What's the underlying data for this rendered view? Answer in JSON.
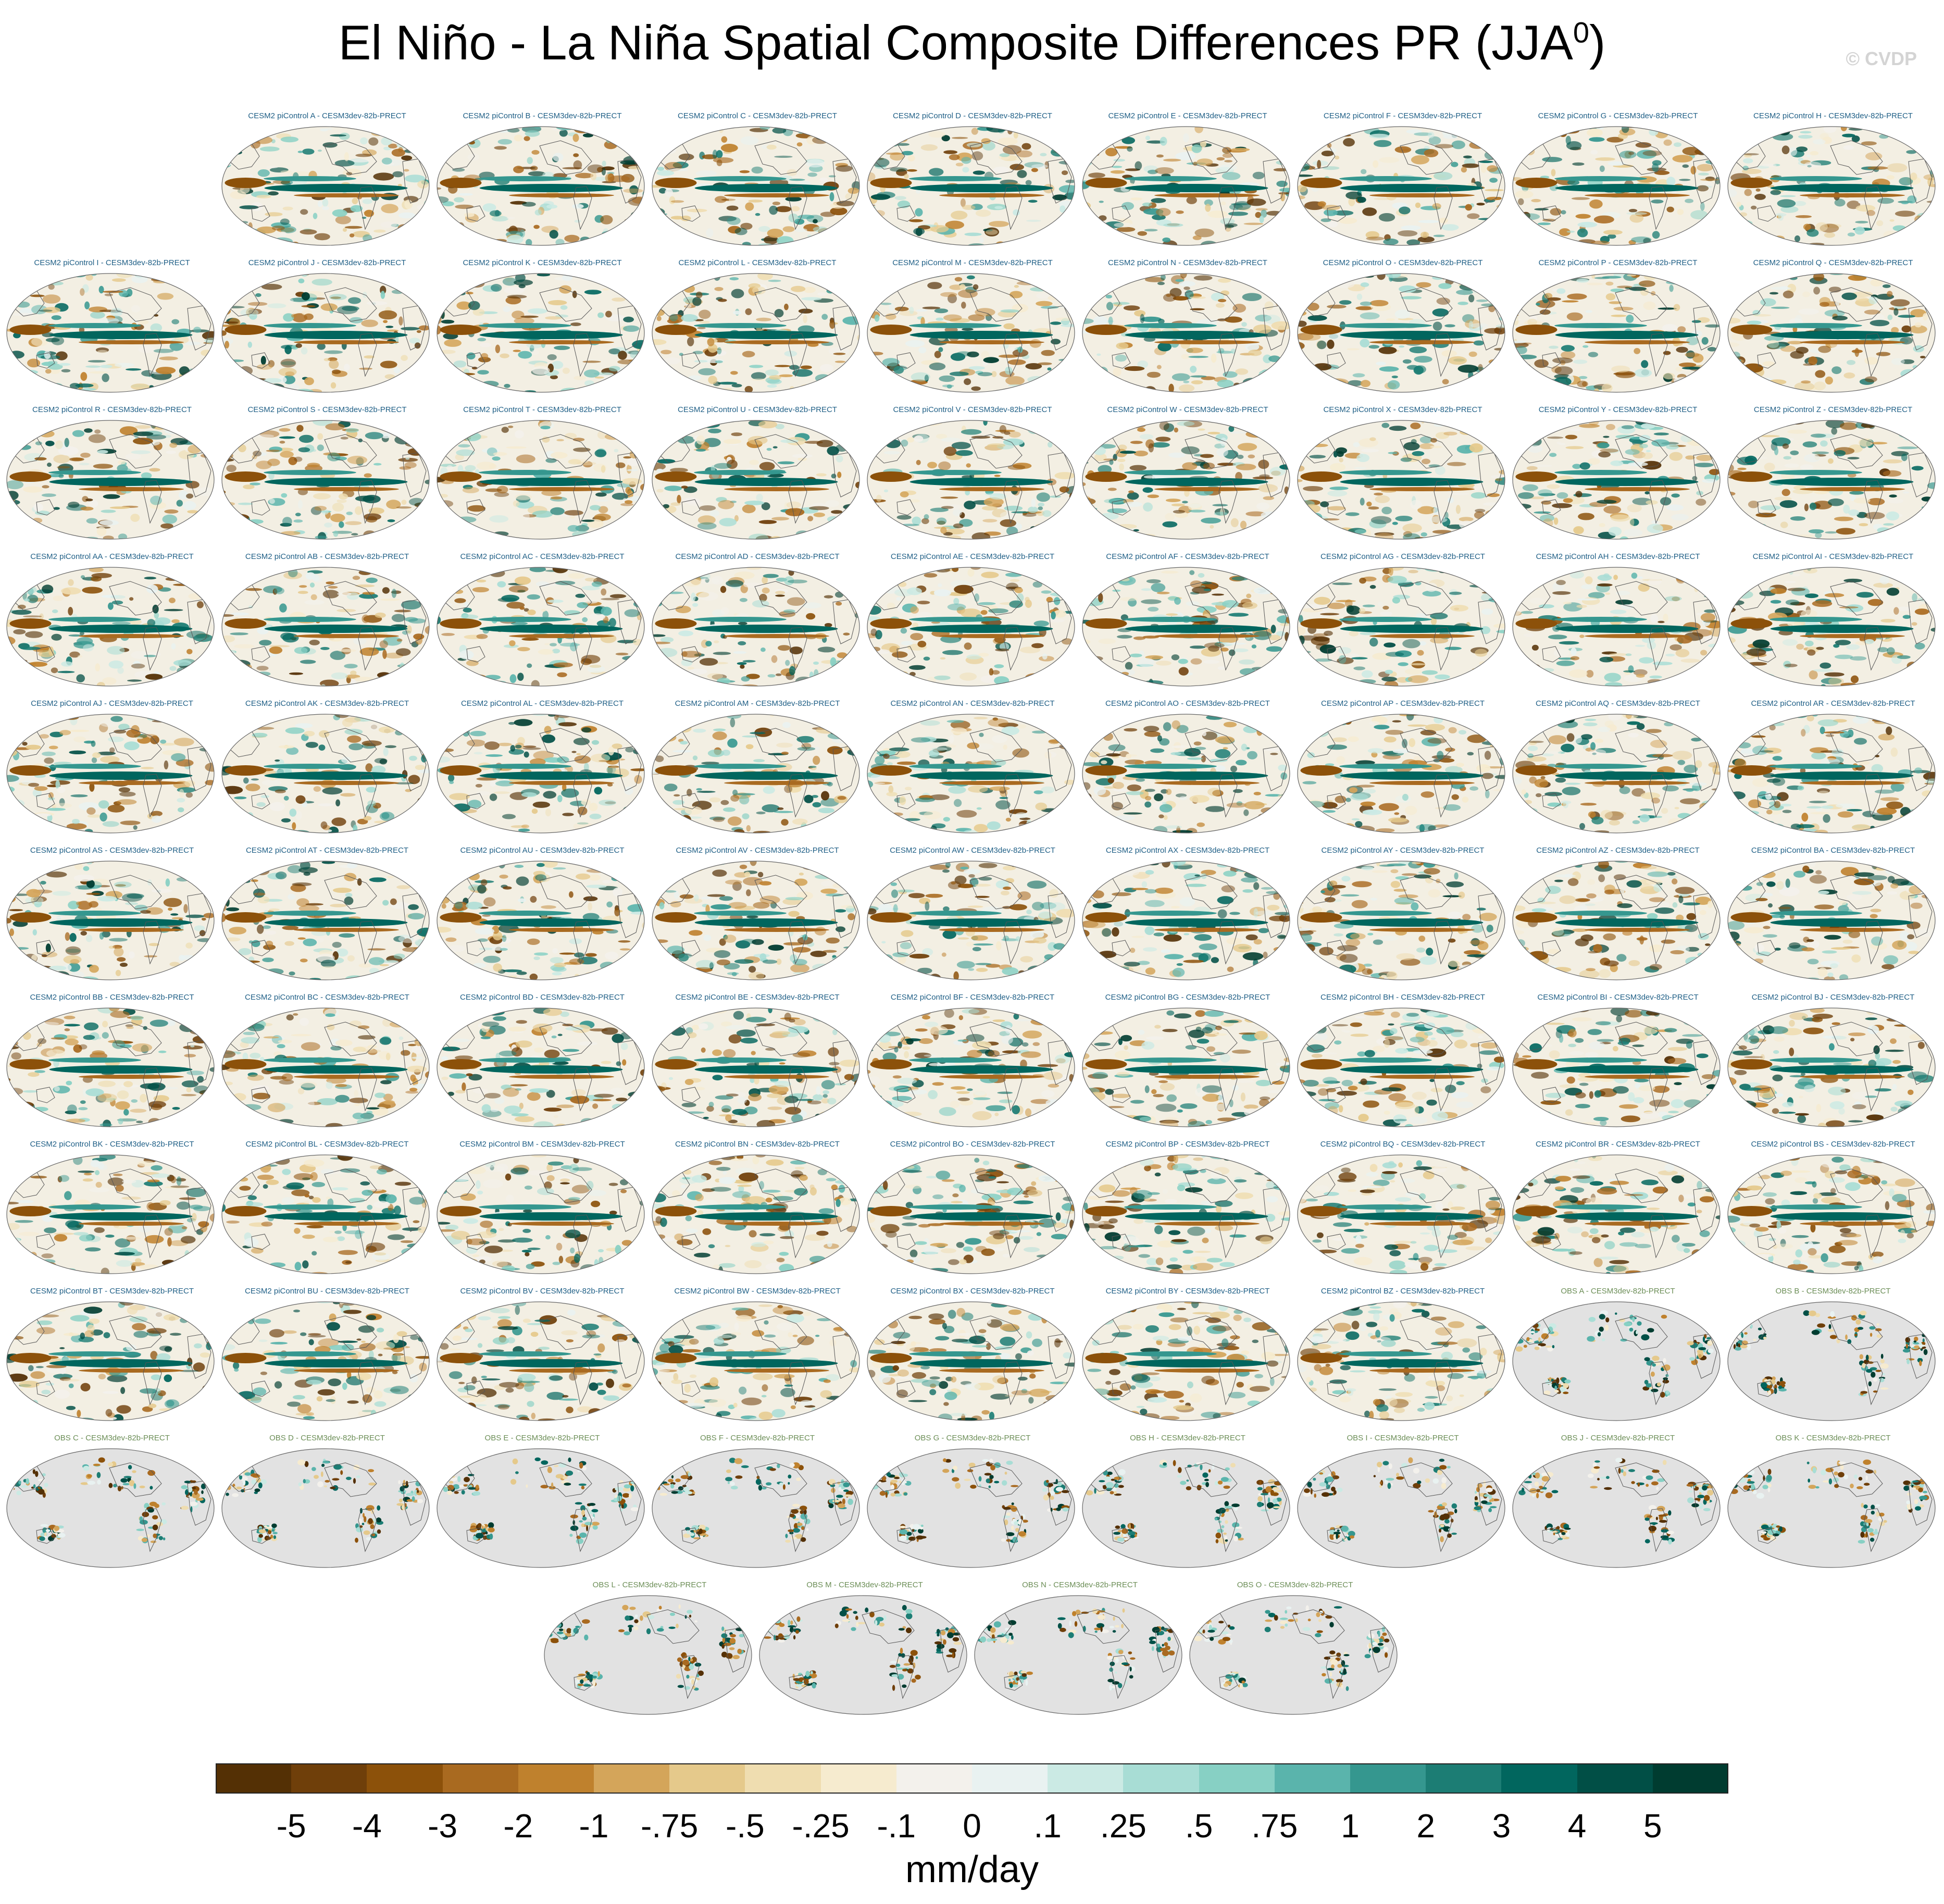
{
  "chart_data": {
    "type": "heatmap",
    "title": "El Niño - La Niña Spatial Composite Differences PR (JJA",
    "title_superscript": "0",
    "title_close": ")",
    "copyright": "© CVDP",
    "units": "mm/day",
    "projection": "global map (Pacific-centered)",
    "colorbar": {
      "labels": [
        "-5",
        "-4",
        "-3",
        "-2",
        "-1",
        "-.75",
        "-.5",
        "-.25",
        "-.1",
        "0",
        ".1",
        ".25",
        ".5",
        ".75",
        "1",
        "2",
        "3",
        "4",
        "5"
      ],
      "colors": [
        "#543005",
        "#6f3f0a",
        "#8c510a",
        "#a96a20",
        "#bf812d",
        "#d4a55a",
        "#e5c98b",
        "#efddb0",
        "#f6ebcf",
        "#f3f1ec",
        "#e9f2f1",
        "#cbeae4",
        "#a8ddd5",
        "#87d0c4",
        "#5ab4ac",
        "#35978f",
        "#1c7d74",
        "#01665e",
        "#014f46",
        "#003c30"
      ]
    },
    "panels": [
      {
        "label": "CESM2 piControl A - CESM3dev-82b-PRECT",
        "kind": "model"
      },
      {
        "label": "CESM2 piControl B - CESM3dev-82b-PRECT",
        "kind": "model"
      },
      {
        "label": "CESM2 piControl C - CESM3dev-82b-PRECT",
        "kind": "model"
      },
      {
        "label": "CESM2 piControl D - CESM3dev-82b-PRECT",
        "kind": "model"
      },
      {
        "label": "CESM2 piControl E - CESM3dev-82b-PRECT",
        "kind": "model"
      },
      {
        "label": "CESM2 piControl F - CESM3dev-82b-PRECT",
        "kind": "model"
      },
      {
        "label": "CESM2 piControl G - CESM3dev-82b-PRECT",
        "kind": "model"
      },
      {
        "label": "CESM2 piControl H - CESM3dev-82b-PRECT",
        "kind": "model"
      },
      {
        "label": "CESM2 piControl I - CESM3dev-82b-PRECT",
        "kind": "model"
      },
      {
        "label": "CESM2 piControl J - CESM3dev-82b-PRECT",
        "kind": "model"
      },
      {
        "label": "CESM2 piControl K - CESM3dev-82b-PRECT",
        "kind": "model"
      },
      {
        "label": "CESM2 piControl L - CESM3dev-82b-PRECT",
        "kind": "model"
      },
      {
        "label": "CESM2 piControl M - CESM3dev-82b-PRECT",
        "kind": "model"
      },
      {
        "label": "CESM2 piControl N - CESM3dev-82b-PRECT",
        "kind": "model"
      },
      {
        "label": "CESM2 piControl O - CESM3dev-82b-PRECT",
        "kind": "model"
      },
      {
        "label": "CESM2 piControl P - CESM3dev-82b-PRECT",
        "kind": "model"
      },
      {
        "label": "CESM2 piControl Q - CESM3dev-82b-PRECT",
        "kind": "model"
      },
      {
        "label": "CESM2 piControl R - CESM3dev-82b-PRECT",
        "kind": "model"
      },
      {
        "label": "CESM2 piControl S - CESM3dev-82b-PRECT",
        "kind": "model"
      },
      {
        "label": "CESM2 piControl T - CESM3dev-82b-PRECT",
        "kind": "model"
      },
      {
        "label": "CESM2 piControl U - CESM3dev-82b-PRECT",
        "kind": "model"
      },
      {
        "label": "CESM2 piControl V - CESM3dev-82b-PRECT",
        "kind": "model"
      },
      {
        "label": "CESM2 piControl W - CESM3dev-82b-PRECT",
        "kind": "model"
      },
      {
        "label": "CESM2 piControl X - CESM3dev-82b-PRECT",
        "kind": "model"
      },
      {
        "label": "CESM2 piControl Y - CESM3dev-82b-PRECT",
        "kind": "model"
      },
      {
        "label": "CESM2 piControl Z - CESM3dev-82b-PRECT",
        "kind": "model"
      },
      {
        "label": "CESM2 piControl AA - CESM3dev-82b-PRECT",
        "kind": "model"
      },
      {
        "label": "CESM2 piControl AB - CESM3dev-82b-PRECT",
        "kind": "model"
      },
      {
        "label": "CESM2 piControl AC - CESM3dev-82b-PRECT",
        "kind": "model"
      },
      {
        "label": "CESM2 piControl AD - CESM3dev-82b-PRECT",
        "kind": "model"
      },
      {
        "label": "CESM2 piControl AE - CESM3dev-82b-PRECT",
        "kind": "model"
      },
      {
        "label": "CESM2 piControl AF - CESM3dev-82b-PRECT",
        "kind": "model"
      },
      {
        "label": "CESM2 piControl AG - CESM3dev-82b-PRECT",
        "kind": "model"
      },
      {
        "label": "CESM2 piControl AH - CESM3dev-82b-PRECT",
        "kind": "model"
      },
      {
        "label": "CESM2 piControl AI - CESM3dev-82b-PRECT",
        "kind": "model"
      },
      {
        "label": "CESM2 piControl AJ - CESM3dev-82b-PRECT",
        "kind": "model"
      },
      {
        "label": "CESM2 piControl AK - CESM3dev-82b-PRECT",
        "kind": "model"
      },
      {
        "label": "CESM2 piControl AL - CESM3dev-82b-PRECT",
        "kind": "model"
      },
      {
        "label": "CESM2 piControl AM - CESM3dev-82b-PRECT",
        "kind": "model"
      },
      {
        "label": "CESM2 piControl AN - CESM3dev-82b-PRECT",
        "kind": "model"
      },
      {
        "label": "CESM2 piControl AO - CESM3dev-82b-PRECT",
        "kind": "model"
      },
      {
        "label": "CESM2 piControl AP - CESM3dev-82b-PRECT",
        "kind": "model"
      },
      {
        "label": "CESM2 piControl AQ - CESM3dev-82b-PRECT",
        "kind": "model"
      },
      {
        "label": "CESM2 piControl AR - CESM3dev-82b-PRECT",
        "kind": "model"
      },
      {
        "label": "CESM2 piControl AS - CESM3dev-82b-PRECT",
        "kind": "model"
      },
      {
        "label": "CESM2 piControl AT - CESM3dev-82b-PRECT",
        "kind": "model"
      },
      {
        "label": "CESM2 piControl AU - CESM3dev-82b-PRECT",
        "kind": "model"
      },
      {
        "label": "CESM2 piControl AV - CESM3dev-82b-PRECT",
        "kind": "model"
      },
      {
        "label": "CESM2 piControl AW - CESM3dev-82b-PRECT",
        "kind": "model"
      },
      {
        "label": "CESM2 piControl AX - CESM3dev-82b-PRECT",
        "kind": "model"
      },
      {
        "label": "CESM2 piControl AY - CESM3dev-82b-PRECT",
        "kind": "model"
      },
      {
        "label": "CESM2 piControl AZ - CESM3dev-82b-PRECT",
        "kind": "model"
      },
      {
        "label": "CESM2 piControl BA - CESM3dev-82b-PRECT",
        "kind": "model"
      },
      {
        "label": "CESM2 piControl BB - CESM3dev-82b-PRECT",
        "kind": "model"
      },
      {
        "label": "CESM2 piControl BC - CESM3dev-82b-PRECT",
        "kind": "model"
      },
      {
        "label": "CESM2 piControl BD - CESM3dev-82b-PRECT",
        "kind": "model"
      },
      {
        "label": "CESM2 piControl BE - CESM3dev-82b-PRECT",
        "kind": "model"
      },
      {
        "label": "CESM2 piControl BF - CESM3dev-82b-PRECT",
        "kind": "model"
      },
      {
        "label": "CESM2 piControl BG - CESM3dev-82b-PRECT",
        "kind": "model"
      },
      {
        "label": "CESM2 piControl BH - CESM3dev-82b-PRECT",
        "kind": "model"
      },
      {
        "label": "CESM2 piControl BI - CESM3dev-82b-PRECT",
        "kind": "model"
      },
      {
        "label": "CESM2 piControl BJ - CESM3dev-82b-PRECT",
        "kind": "model"
      },
      {
        "label": "CESM2 piControl BK - CESM3dev-82b-PRECT",
        "kind": "model"
      },
      {
        "label": "CESM2 piControl BL - CESM3dev-82b-PRECT",
        "kind": "model"
      },
      {
        "label": "CESM2 piControl BM - CESM3dev-82b-PRECT",
        "kind": "model"
      },
      {
        "label": "CESM2 piControl BN - CESM3dev-82b-PRECT",
        "kind": "model"
      },
      {
        "label": "CESM2 piControl BO - CESM3dev-82b-PRECT",
        "kind": "model"
      },
      {
        "label": "CESM2 piControl BP - CESM3dev-82b-PRECT",
        "kind": "model"
      },
      {
        "label": "CESM2 piControl BQ - CESM3dev-82b-PRECT",
        "kind": "model"
      },
      {
        "label": "CESM2 piControl BR - CESM3dev-82b-PRECT",
        "kind": "model"
      },
      {
        "label": "CESM2 piControl BS - CESM3dev-82b-PRECT",
        "kind": "model"
      },
      {
        "label": "CESM2 piControl BT - CESM3dev-82b-PRECT",
        "kind": "model"
      },
      {
        "label": "CESM2 piControl BU - CESM3dev-82b-PRECT",
        "kind": "model"
      },
      {
        "label": "CESM2 piControl BV - CESM3dev-82b-PRECT",
        "kind": "model"
      },
      {
        "label": "CESM2 piControl BW - CESM3dev-82b-PRECT",
        "kind": "model"
      },
      {
        "label": "CESM2 piControl BX - CESM3dev-82b-PRECT",
        "kind": "model"
      },
      {
        "label": "CESM2 piControl BY - CESM3dev-82b-PRECT",
        "kind": "model"
      },
      {
        "label": "CESM2 piControl BZ - CESM3dev-82b-PRECT",
        "kind": "model"
      },
      {
        "label": "OBS A - CESM3dev-82b-PRECT",
        "kind": "obs"
      },
      {
        "label": "OBS B - CESM3dev-82b-PRECT",
        "kind": "obs"
      },
      {
        "label": "OBS C - CESM3dev-82b-PRECT",
        "kind": "obs"
      },
      {
        "label": "OBS D - CESM3dev-82b-PRECT",
        "kind": "obs"
      },
      {
        "label": "OBS E - CESM3dev-82b-PRECT",
        "kind": "obs"
      },
      {
        "label": "OBS F - CESM3dev-82b-PRECT",
        "kind": "obs"
      },
      {
        "label": "OBS G - CESM3dev-82b-PRECT",
        "kind": "obs"
      },
      {
        "label": "OBS H - CESM3dev-82b-PRECT",
        "kind": "obs"
      },
      {
        "label": "OBS I - CESM3dev-82b-PRECT",
        "kind": "obs"
      },
      {
        "label": "OBS J - CESM3dev-82b-PRECT",
        "kind": "obs"
      },
      {
        "label": "OBS K - CESM3dev-82b-PRECT",
        "kind": "obs"
      },
      {
        "label": "OBS L - CESM3dev-82b-PRECT",
        "kind": "obs"
      },
      {
        "label": "OBS M - CESM3dev-82b-PRECT",
        "kind": "obs"
      },
      {
        "label": "OBS N - CESM3dev-82b-PRECT",
        "kind": "obs"
      },
      {
        "label": "OBS O - CESM3dev-82b-PRECT",
        "kind": "obs"
      }
    ]
  }
}
